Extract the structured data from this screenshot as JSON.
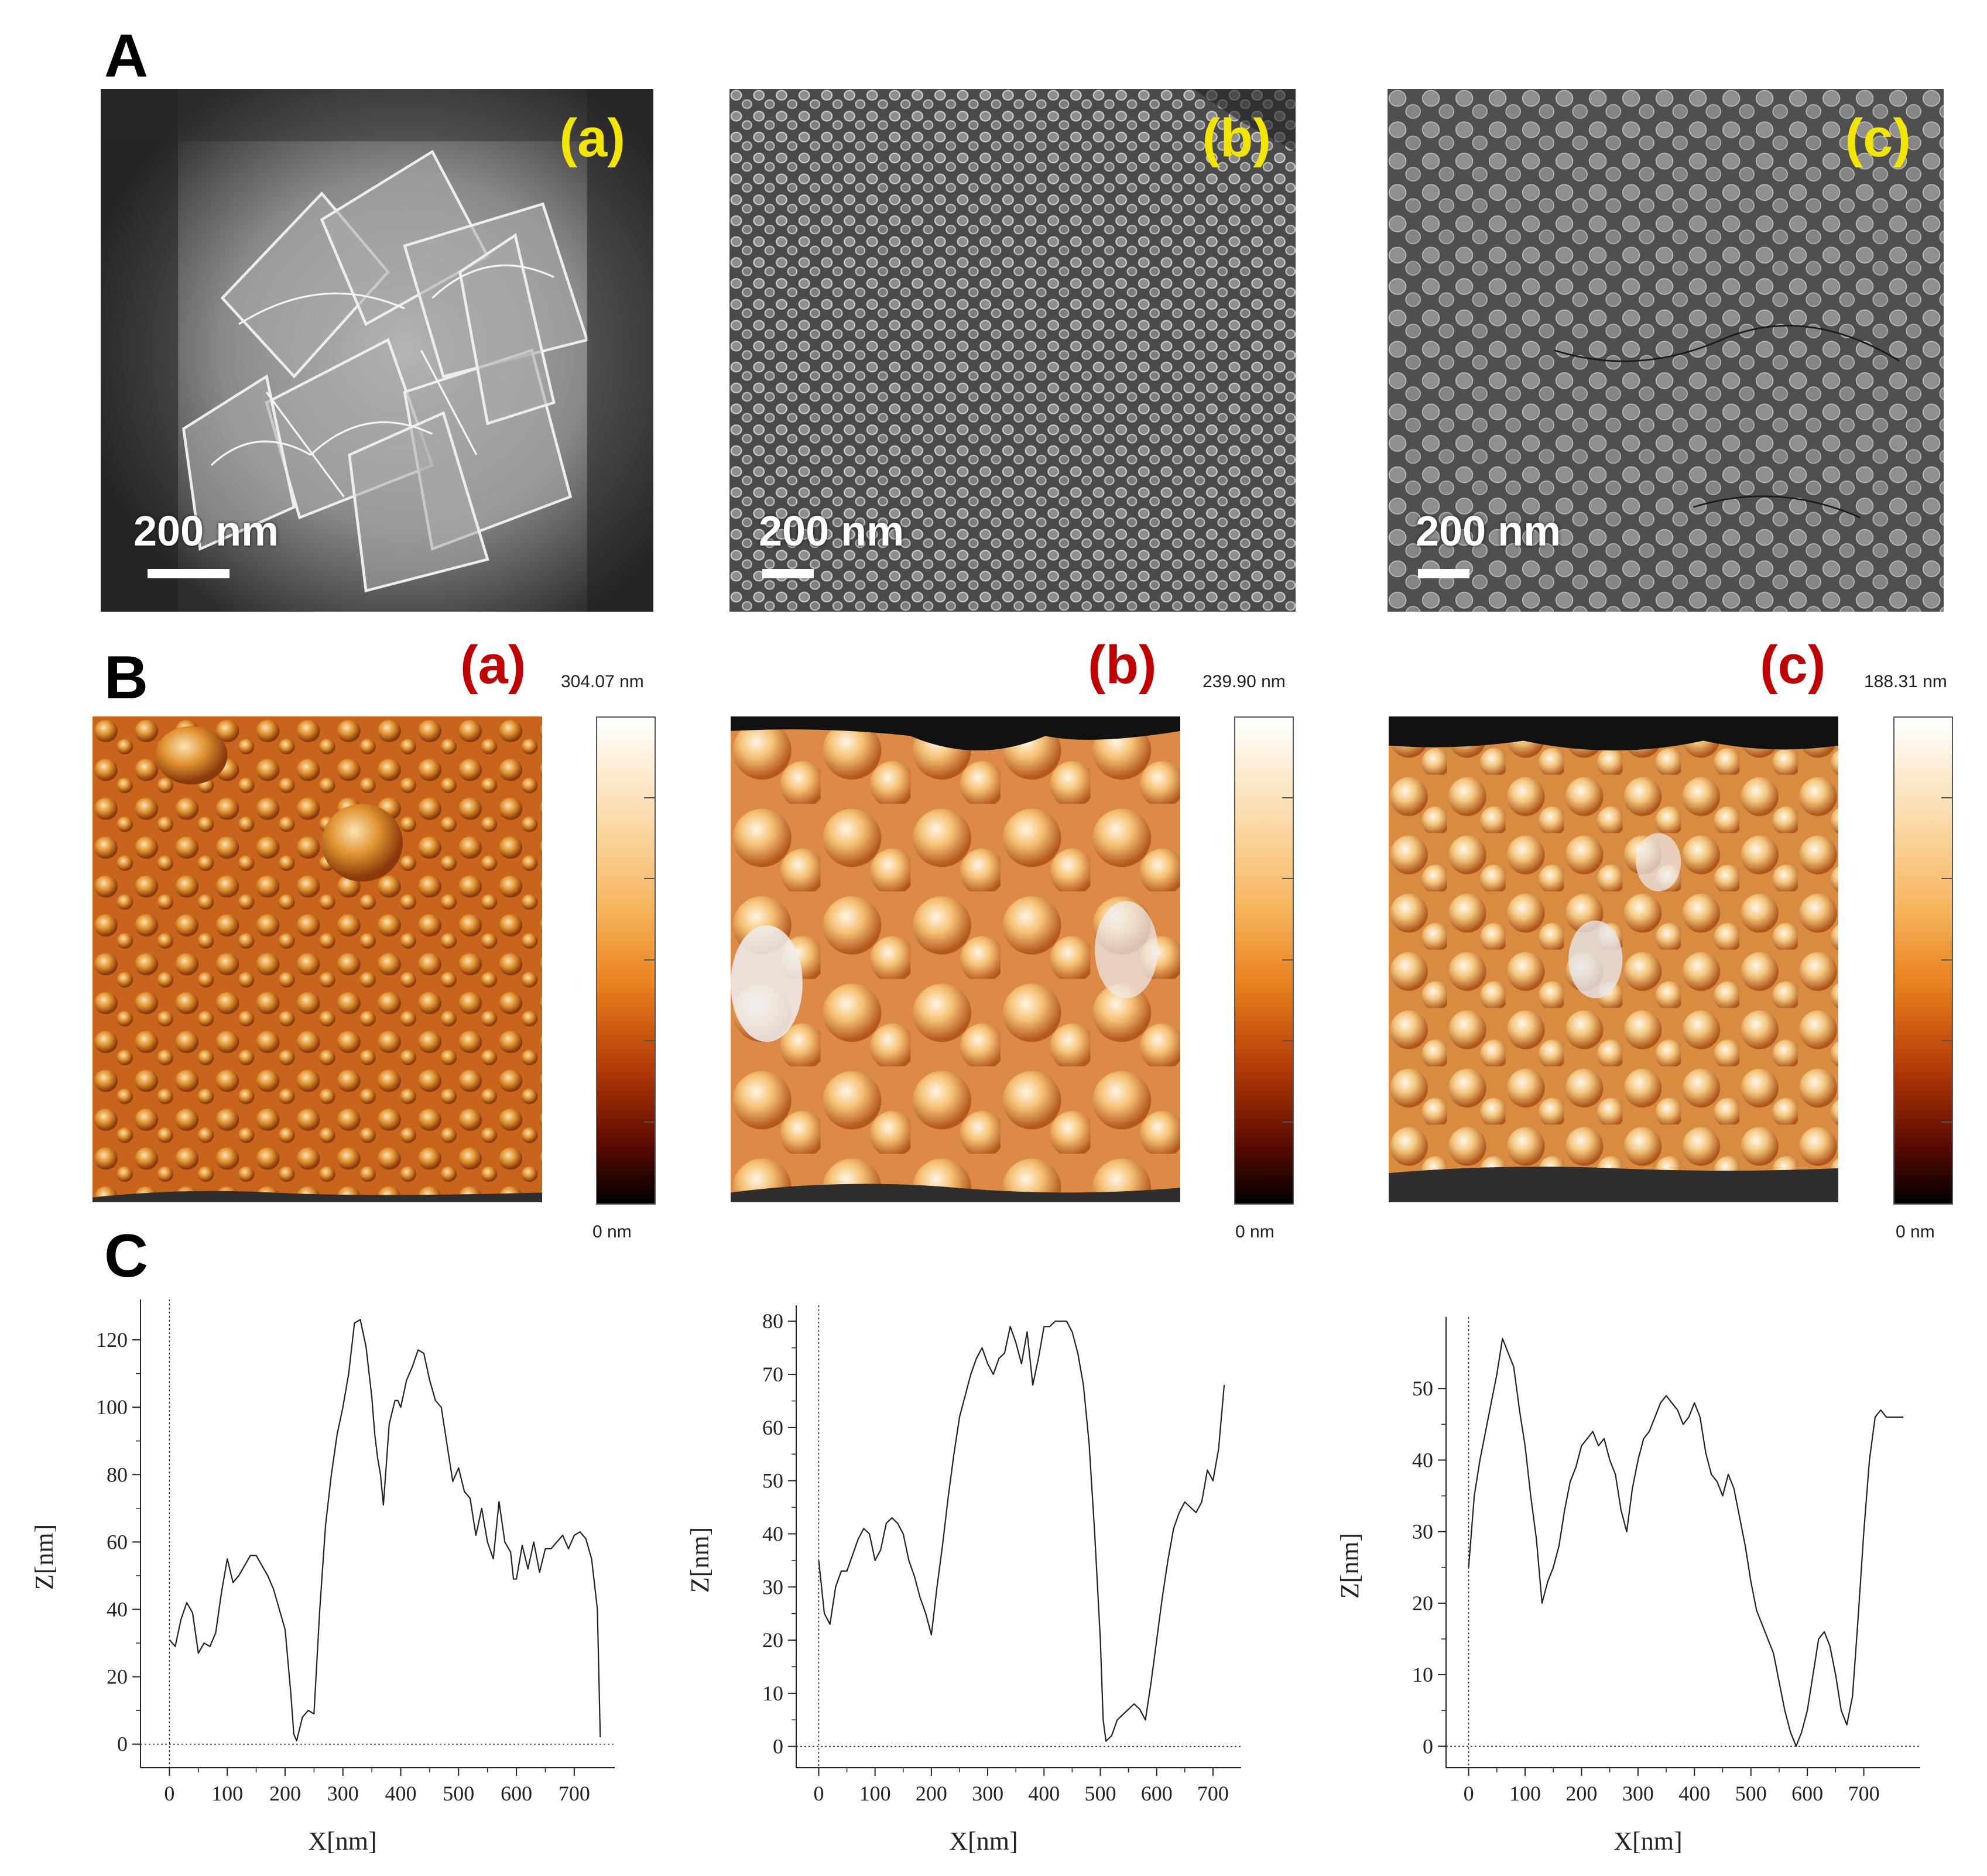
{
  "panels": {
    "A": {
      "letter": "A"
    },
    "B": {
      "letter": "B"
    },
    "C": {
      "letter": "C"
    }
  },
  "sem_images": [
    {
      "label": "(a)",
      "scale": "200 nm"
    },
    {
      "label": "(b)",
      "scale": "200 nm"
    },
    {
      "label": "(c)",
      "scale": "200 nm"
    }
  ],
  "afm_images": [
    {
      "label": "(a)",
      "max": "304.07 nm",
      "min": "0 nm"
    },
    {
      "label": "(b)",
      "max": "239.90 nm",
      "min": "0 nm"
    },
    {
      "label": "(c)",
      "max": "188.31 nm",
      "min": "0 nm"
    }
  ],
  "colors": {
    "sem_label": "#f2e600",
    "afm_label": "#c00000",
    "line": "#222222",
    "colormap": [
      "#000000",
      "#5a0a00",
      "#b53a06",
      "#e8801c",
      "#f7b35a",
      "#fbdcae",
      "#ffffff"
    ]
  },
  "chart_data": [
    {
      "type": "line",
      "xlabel": "X[nm]",
      "ylabel": "Z[nm]",
      "xlim": [
        -50,
        770
      ],
      "ylim": [
        -7,
        132
      ],
      "xticks": [
        0,
        100,
        200,
        300,
        400,
        500,
        600,
        700
      ],
      "yticks": [
        0,
        20,
        40,
        60,
        80,
        100,
        120
      ],
      "x": [
        0,
        10,
        20,
        30,
        40,
        50,
        60,
        70,
        80,
        90,
        100,
        110,
        120,
        130,
        140,
        150,
        160,
        170,
        180,
        190,
        200,
        210,
        215,
        220,
        230,
        240,
        250,
        260,
        270,
        280,
        290,
        300,
        310,
        320,
        330,
        340,
        350,
        355,
        360,
        365,
        370,
        380,
        390,
        395,
        400,
        410,
        420,
        430,
        440,
        450,
        460,
        470,
        480,
        490,
        500,
        510,
        520,
        530,
        540,
        550,
        560,
        570,
        580,
        590,
        595,
        600,
        610,
        620,
        630,
        640,
        650,
        660,
        670,
        680,
        690,
        700,
        710,
        720,
        730,
        740,
        745
      ],
      "y": [
        31,
        29,
        37,
        42,
        39,
        27,
        30,
        29,
        33,
        45,
        55,
        48,
        50,
        53,
        56,
        56,
        53,
        50,
        46,
        40,
        34,
        15,
        3,
        1,
        8,
        10,
        9,
        40,
        65,
        80,
        92,
        100,
        110,
        125,
        126,
        118,
        103,
        92,
        85,
        80,
        71,
        95,
        102,
        102,
        100,
        108,
        112,
        117,
        116,
        108,
        102,
        100,
        89,
        78,
        82,
        75,
        73,
        62,
        70,
        60,
        55,
        72,
        60,
        57,
        49,
        49,
        59,
        52,
        60,
        51,
        58,
        58,
        60,
        62,
        58,
        62,
        63,
        61,
        55,
        40,
        2
      ],
      "series": [
        {
          "name": ""
        }
      ]
    },
    {
      "type": "line",
      "xlabel": "X[nm]",
      "ylabel": "Z[nm]",
      "xlim": [
        -40,
        750
      ],
      "ylim": [
        -4,
        83
      ],
      "xticks": [
        0,
        100,
        200,
        300,
        400,
        500,
        600,
        700
      ],
      "yticks": [
        0,
        10,
        20,
        30,
        40,
        50,
        60,
        70,
        80
      ],
      "x": [
        0,
        10,
        20,
        30,
        40,
        50,
        60,
        70,
        80,
        90,
        100,
        110,
        120,
        130,
        140,
        150,
        160,
        170,
        180,
        190,
        200,
        210,
        220,
        230,
        240,
        250,
        260,
        270,
        280,
        290,
        300,
        310,
        320,
        330,
        340,
        350,
        360,
        370,
        380,
        390,
        400,
        410,
        420,
        430,
        440,
        450,
        460,
        470,
        480,
        490,
        500,
        505,
        510,
        520,
        530,
        540,
        550,
        560,
        570,
        580,
        590,
        600,
        610,
        620,
        630,
        640,
        650,
        660,
        670,
        680,
        690,
        700,
        710,
        720
      ],
      "y": [
        35,
        25,
        23,
        30,
        33,
        33,
        36,
        39,
        41,
        40,
        35,
        37,
        42,
        43,
        42,
        40,
        35,
        32,
        28,
        25,
        21,
        30,
        38,
        47,
        55,
        62,
        66,
        70,
        73,
        75,
        72,
        70,
        73,
        74,
        79,
        76,
        72,
        78,
        68,
        73,
        79,
        79,
        80,
        80,
        80,
        78,
        74,
        68,
        57,
        40,
        20,
        5,
        1,
        2,
        5,
        6,
        7,
        8,
        7,
        5,
        12,
        20,
        28,
        35,
        41,
        44,
        46,
        45,
        44,
        46,
        52,
        50,
        56,
        68
      ],
      "series": [
        {
          "name": ""
        }
      ]
    },
    {
      "type": "line",
      "xlabel": "X[nm]",
      "ylabel": "Z[nm]",
      "xlim": [
        -40,
        800
      ],
      "ylim": [
        -3,
        60
      ],
      "xticks": [
        0,
        100,
        200,
        300,
        400,
        500,
        600,
        700
      ],
      "yticks": [
        0,
        10,
        20,
        30,
        40,
        50
      ],
      "x": [
        0,
        10,
        20,
        30,
        40,
        50,
        60,
        70,
        80,
        90,
        100,
        110,
        120,
        130,
        140,
        150,
        160,
        170,
        180,
        190,
        200,
        210,
        220,
        230,
        240,
        250,
        260,
        270,
        280,
        290,
        300,
        310,
        320,
        330,
        340,
        350,
        360,
        370,
        380,
        390,
        400,
        410,
        420,
        430,
        440,
        450,
        460,
        470,
        480,
        490,
        500,
        510,
        520,
        530,
        540,
        550,
        560,
        570,
        580,
        590,
        600,
        610,
        620,
        630,
        640,
        650,
        660,
        670,
        680,
        690,
        700,
        710,
        720,
        730,
        740,
        750,
        760,
        770
      ],
      "y": [
        25,
        35,
        40,
        44,
        48,
        52,
        57,
        55,
        53,
        47,
        42,
        35,
        29,
        20,
        23,
        25,
        28,
        33,
        37,
        39,
        42,
        43,
        44,
        42,
        43,
        40,
        38,
        33,
        30,
        36,
        40,
        43,
        44,
        46,
        48,
        49,
        48,
        47,
        45,
        46,
        48,
        46,
        41,
        38,
        37,
        35,
        38,
        36,
        32,
        28,
        23,
        19,
        17,
        15,
        13,
        9,
        5,
        2,
        0,
        2,
        5,
        10,
        15,
        16,
        14,
        10,
        5,
        3,
        7,
        18,
        30,
        40,
        46,
        47,
        46,
        46,
        46,
        46
      ],
      "series": [
        {
          "name": ""
        }
      ]
    }
  ]
}
